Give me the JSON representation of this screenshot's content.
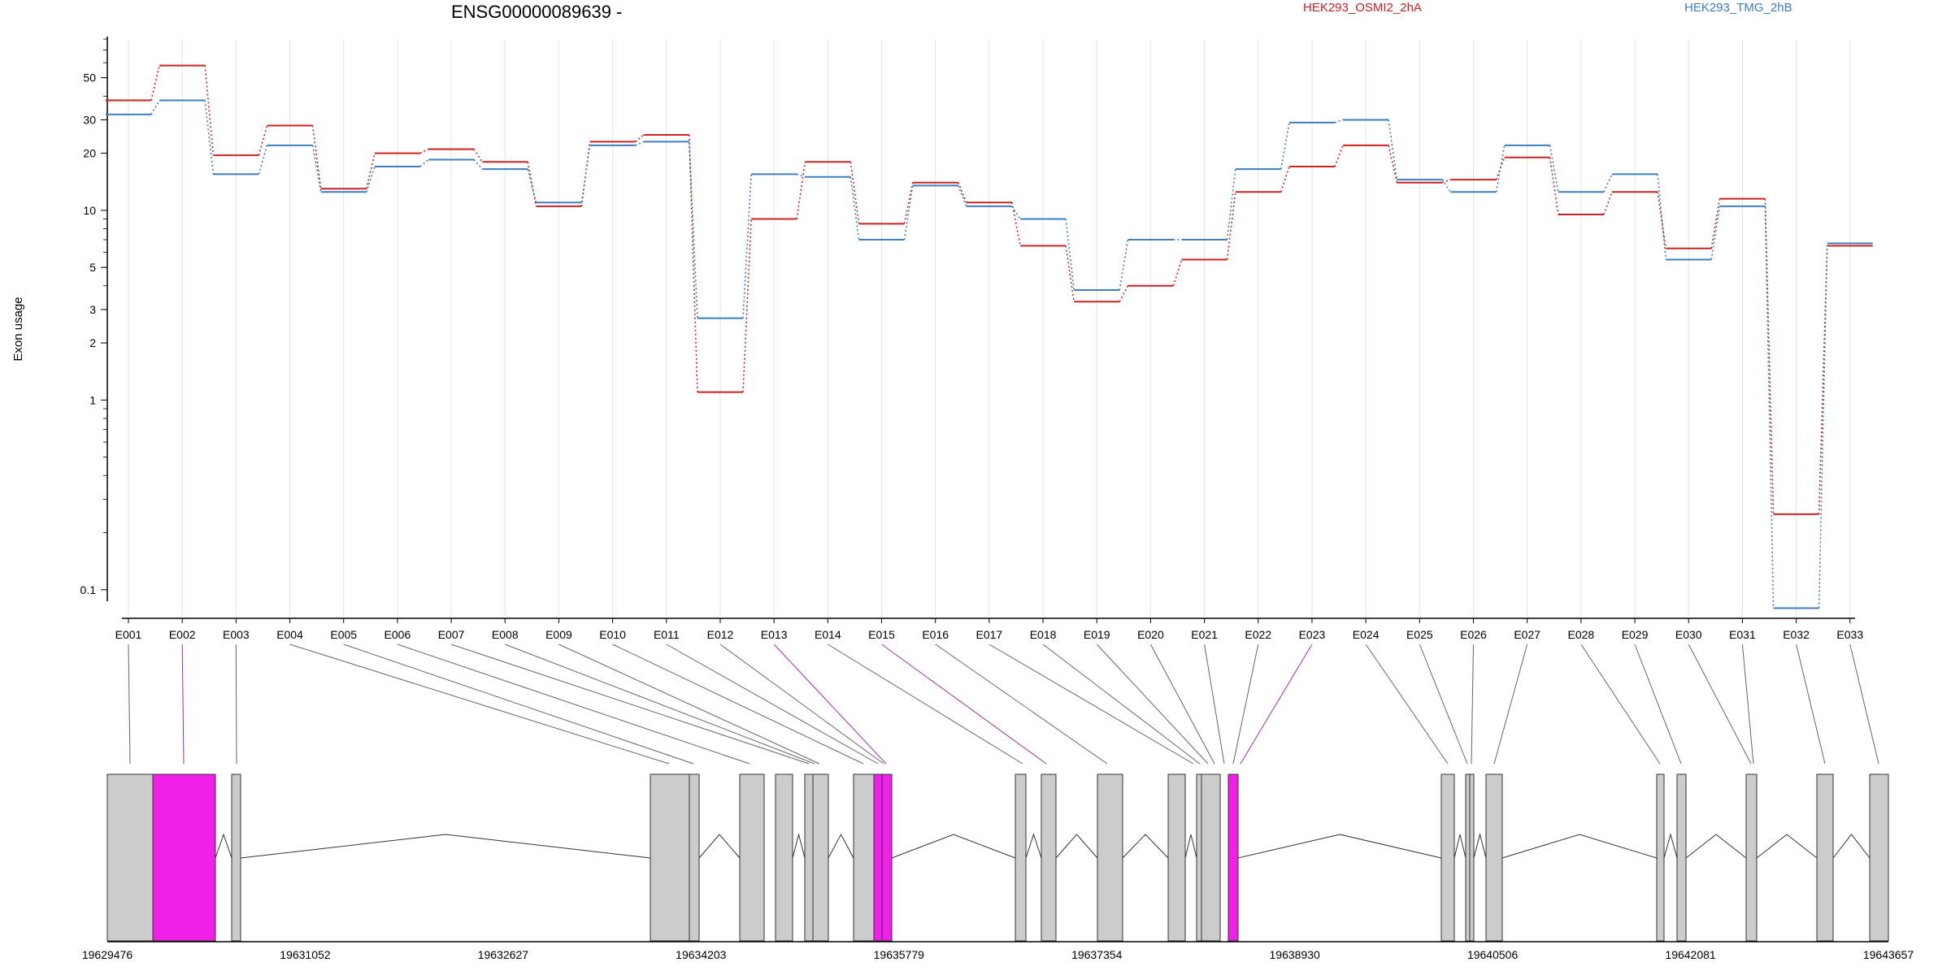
{
  "chart_data": {
    "type": "line",
    "title": "ENSG00000089639 -",
    "ylabel": "Exon usage",
    "y_scale": "log",
    "ylim": [
      0.075,
      80
    ],
    "y_ticks": [
      0.1,
      1,
      2,
      3,
      5,
      10,
      20,
      30,
      50
    ],
    "categories": [
      "E001",
      "E002",
      "E003",
      "E004",
      "E005",
      "E006",
      "E007",
      "E008",
      "E009",
      "E010",
      "E011",
      "E012",
      "E013",
      "E014",
      "E015",
      "E016",
      "E017",
      "E018",
      "E019",
      "E020",
      "E021",
      "E022",
      "E023",
      "E024",
      "E025",
      "E026",
      "E027",
      "E028",
      "E029",
      "E030",
      "E031",
      "E032",
      "E033"
    ],
    "highlighted_exons": [
      "E002",
      "E013",
      "E015",
      "E023"
    ],
    "series": [
      {
        "name": "HEK293_OSMI2_2hA",
        "color": "#cc2222",
        "values": [
          38,
          58,
          19.5,
          28,
          13,
          20,
          21,
          18,
          10.5,
          23,
          25,
          1.1,
          9,
          18,
          8.5,
          14,
          11,
          6.5,
          3.3,
          4,
          5.5,
          12.5,
          17,
          22,
          14,
          14.5,
          19,
          9.5,
          12.5,
          6.3,
          11.5,
          0.25,
          6.5
        ]
      },
      {
        "name": "HEK293_TMG_2hB",
        "color": "#3c7ebf",
        "values": [
          32,
          38,
          15.5,
          22,
          12.5,
          17,
          18.5,
          16.5,
          11,
          22,
          23,
          2.7,
          15.5,
          15,
          7,
          13.5,
          10.5,
          9,
          3.8,
          7,
          7,
          16.5,
          29,
          30,
          14.5,
          12.5,
          22,
          12.5,
          15.5,
          5.5,
          10.5,
          0.08,
          6.7
        ]
      }
    ],
    "gene_model": {
      "genomic_ticks": [
        "19629476",
        "19631052",
        "19632627",
        "19634203",
        "19635779",
        "19637354",
        "19638930",
        "19640506",
        "19642081",
        "19643657"
      ]
    },
    "colors": {
      "highlight": "#f020e8",
      "exon": "#cccccc",
      "grid": "#e4e4e4"
    }
  }
}
